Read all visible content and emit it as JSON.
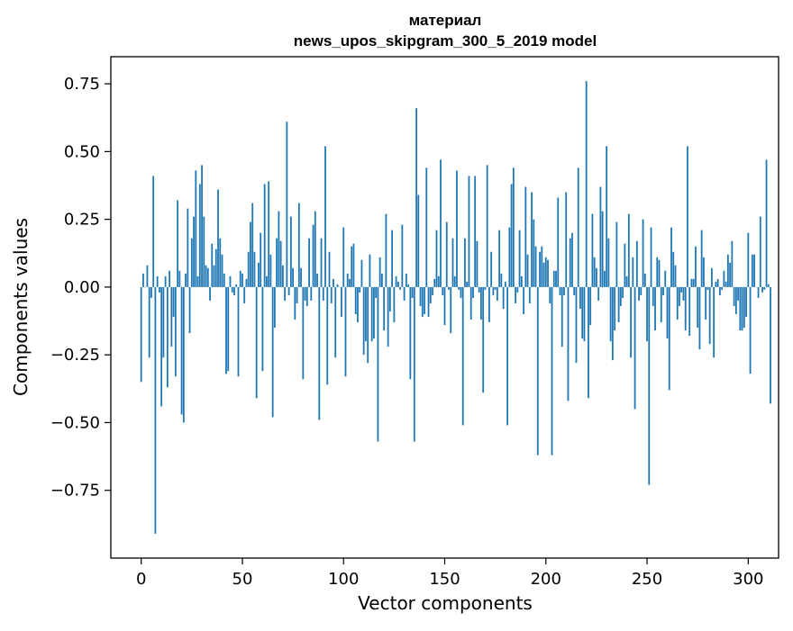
{
  "chart_data": {
    "type": "bar",
    "title_line1": "материал",
    "title_line2": "news_upos_skipgram_300_5_2019 model",
    "xlabel": "Vector components",
    "ylabel": "Components values",
    "xlim": [
      -15,
      315
    ],
    "ylim": [
      -1.0,
      0.85
    ],
    "xticks": [
      0,
      50,
      100,
      150,
      200,
      250,
      300
    ],
    "xtick_labels": [
      "0",
      "50",
      "100",
      "150",
      "200",
      "250",
      "300"
    ],
    "yticks": [
      -0.75,
      -0.5,
      -0.25,
      0.0,
      0.25,
      0.5,
      0.75
    ],
    "ytick_labels": [
      "−0.75",
      "−0.50",
      "−0.25",
      "0.00",
      "0.25",
      "0.50",
      "0.75"
    ],
    "grid": false,
    "bar_color": "#1f77b4",
    "values": [
      -0.35,
      0.05,
      0.0,
      0.08,
      -0.26,
      -0.04,
      0.41,
      -0.91,
      0.04,
      -0.02,
      -0.44,
      -0.26,
      0.04,
      -0.37,
      0.06,
      -0.22,
      -0.11,
      -0.33,
      0.32,
      0.06,
      -0.47,
      -0.5,
      0.05,
      0.29,
      -0.17,
      0.18,
      0.26,
      0.43,
      0.04,
      0.38,
      0.45,
      0.26,
      0.08,
      0.07,
      -0.05,
      0.16,
      0.08,
      0.14,
      0.36,
      0.18,
      0.12,
      0.05,
      -0.32,
      -0.31,
      0.04,
      -0.02,
      -0.03,
      0.01,
      -0.33,
      0.06,
      0.05,
      -0.06,
      0.03,
      0.13,
      0.24,
      0.31,
      0.13,
      -0.41,
      0.09,
      0.2,
      -0.31,
      0.38,
      0.04,
      0.39,
      0.12,
      -0.48,
      -0.15,
      0.18,
      0.28,
      0.17,
      0.08,
      -0.05,
      0.61,
      -0.03,
      0.26,
      0.07,
      -0.12,
      -0.06,
      0.31,
      0.07,
      -0.34,
      -0.05,
      -0.07,
      0.18,
      -0.05,
      0.23,
      0.28,
      0.05,
      -0.49,
      0.18,
      -0.05,
      0.52,
      -0.36,
      0.13,
      -0.06,
      0.03,
      -0.26,
      0.01,
      0.0,
      -0.11,
      0.22,
      -0.33,
      0.05,
      0.03,
      0.15,
      0.16,
      -0.1,
      -0.13,
      -0.02,
      0.1,
      -0.25,
      -0.2,
      -0.28,
      0.12,
      -0.2,
      -0.19,
      -0.04,
      -0.57,
      0.11,
      0.05,
      -0.16,
      0.27,
      -0.22,
      -0.09,
      0.21,
      -0.13,
      0.04,
      0.02,
      -0.01,
      0.23,
      -0.05,
      0.05,
      0.01,
      -0.34,
      -0.04,
      -0.57,
      0.66,
      0.34,
      -0.07,
      -0.11,
      -0.1,
      0.44,
      -0.11,
      -0.06,
      -0.03,
      0.03,
      0.21,
      0.04,
      0.47,
      -0.03,
      -0.14,
      0.24,
      -0.01,
      -0.17,
      0.18,
      0.04,
      0.43,
      -0.01,
      -0.04,
      -0.51,
      0.18,
      0.02,
      0.41,
      -0.12,
      -0.04,
      0.41,
      0.17,
      -0.02,
      -0.12,
      -0.39,
      -0.01,
      0.45,
      -0.13,
      0.13,
      -0.03,
      -0.01,
      -0.05,
      0.21,
      0.05,
      -0.08,
      0.02,
      -0.51,
      0.22,
      0.38,
      0.44,
      -0.06,
      -0.02,
      0.21,
      0.04,
      -0.1,
      0.37,
      0.12,
      -0.06,
      0.35,
      0.25,
      0.15,
      -0.62,
      0.13,
      0.15,
      0.09,
      0.11,
      0.1,
      -0.06,
      -0.62,
      0.06,
      0.06,
      0.33,
      -0.03,
      -0.22,
      -0.03,
      0.35,
      -0.42,
      0.18,
      0.2,
      -0.03,
      -0.28,
      0.44,
      -0.08,
      -0.19,
      -0.2,
      0.76,
      -0.41,
      -0.14,
      0.27,
      0.11,
      0.07,
      -0.05,
      0.37,
      0.28,
      0.06,
      0.52,
      0.18,
      -0.2,
      -0.27,
      -0.16,
      0.24,
      -0.13,
      -0.07,
      -0.04,
      0.16,
      0.04,
      0.27,
      -0.26,
      0.11,
      -0.45,
      0.17,
      -0.05,
      -0.03,
      0.25,
      0.05,
      -0.2,
      -0.73,
      0.22,
      -0.07,
      -0.16,
      0.11,
      0.1,
      -0.13,
      -0.03,
      0.06,
      -0.19,
      -0.38,
      0.22,
      0.13,
      0.08,
      -0.12,
      -0.07,
      -0.02,
      -0.05,
      -0.16,
      0.52,
      -0.18,
      0.03,
      0.03,
      0.15,
      -0.15,
      -0.23,
      0.21,
      0.11,
      -0.12,
      -0.01,
      -0.21,
      0.07,
      -0.26,
      0.02,
      0.03,
      -0.03,
      -0.01,
      0.06,
      0.02,
      0.12,
      0.09,
      0.17,
      -0.07,
      -0.1,
      -0.05,
      -0.16,
      -0.16,
      -0.15,
      -0.11,
      0.2,
      -0.32,
      0.12,
      0.12,
      0.0,
      -0.04,
      0.26,
      -0.02,
      -0.01,
      0.47,
      0.01,
      -0.43
    ]
  }
}
